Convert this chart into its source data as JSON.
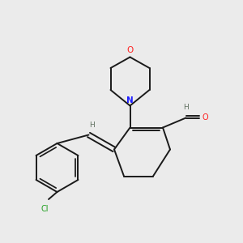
{
  "background_color": "#ebebeb",
  "bond_color": "#1a1a1a",
  "N_color": "#2020ff",
  "O_color": "#ff2020",
  "Cl_color": "#20a020",
  "H_color": "#607060",
  "figsize": [
    3.0,
    3.0
  ],
  "dpi": 100,
  "xlim": [
    0,
    10
  ],
  "ylim": [
    0,
    10
  ]
}
